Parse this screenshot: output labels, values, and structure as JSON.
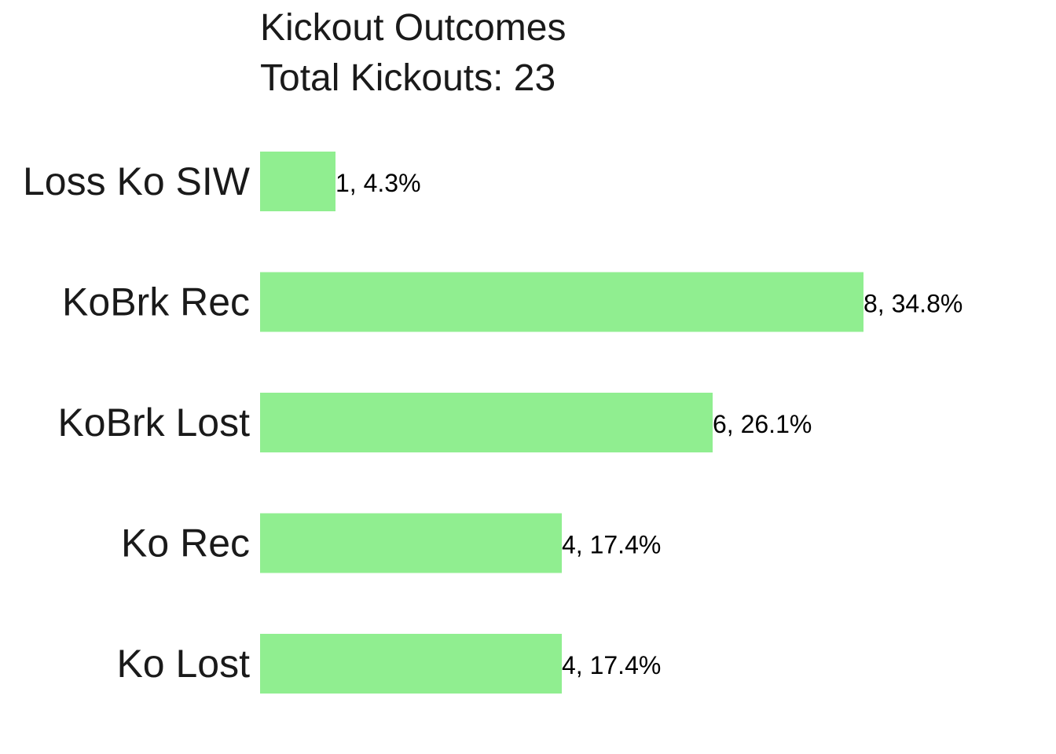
{
  "chart_data": {
    "type": "bar",
    "orientation": "horizontal",
    "title": "Kickout Outcomes",
    "subtitle": "Total Kickouts: 23",
    "categories": [
      "Loss Ko SIW",
      "KoBrk Rec",
      "KoBrk Lost",
      "Ko Rec",
      "Ko Lost"
    ],
    "values": [
      1,
      8,
      6,
      4,
      4
    ],
    "data_labels": [
      "1, 4.3%",
      "8, 34.8%",
      "6, 26.1%",
      "4, 17.4%",
      "4, 17.4%"
    ],
    "bar_color": "#90EE90",
    "xlim": [
      0,
      8
    ],
    "grid": false,
    "legend": "none"
  }
}
